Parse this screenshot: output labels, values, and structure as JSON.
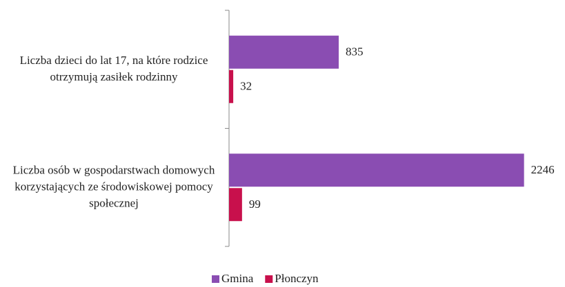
{
  "chart_data": {
    "type": "bar",
    "orientation": "horizontal",
    "categories": [
      "Liczba dzieci do lat 17, na które rodzice otrzymują zasiłek rodzinny",
      "Liczba osób w gospodarstwach domowych korzystających ze środowiskowej pomocy społecznej"
    ],
    "series": [
      {
        "name": "Gmina",
        "color": "#8a4db2",
        "values": [
          835,
          2246
        ]
      },
      {
        "name": "Płonczyn",
        "color": "#c8104c",
        "values": [
          32,
          99
        ]
      }
    ],
    "xlim": [
      0,
      2500
    ],
    "legend": "bottom"
  }
}
